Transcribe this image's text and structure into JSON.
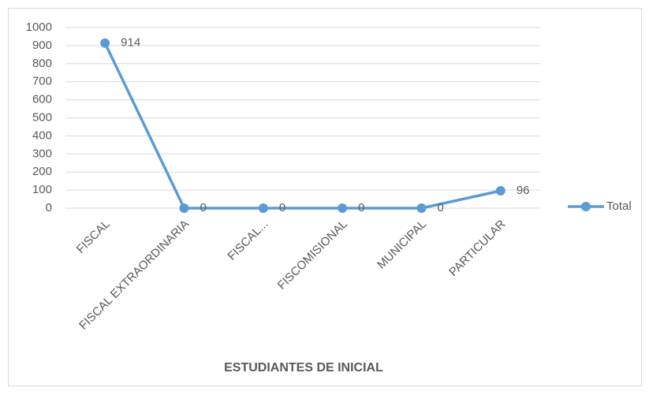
{
  "chart_data": {
    "type": "line",
    "x_label": "ESTUDIANTES DE INICIAL",
    "categories": [
      "FISCAL",
      "FISCAL EXTRAORDINARIA",
      "FISCAL...",
      "FISCOMISIONAL",
      "MUNICIPAL",
      "PARTICULAR"
    ],
    "series": [
      {
        "name": "Total",
        "color": "#5b9bd5",
        "values": [
          914,
          0,
          0,
          0,
          0,
          96
        ]
      }
    ],
    "ylim": [
      0,
      1000
    ],
    "yticks": [
      0,
      100,
      200,
      300,
      400,
      500,
      600,
      700,
      800,
      900,
      1000
    ],
    "grid": true,
    "legend": "right",
    "data_labels": true
  }
}
